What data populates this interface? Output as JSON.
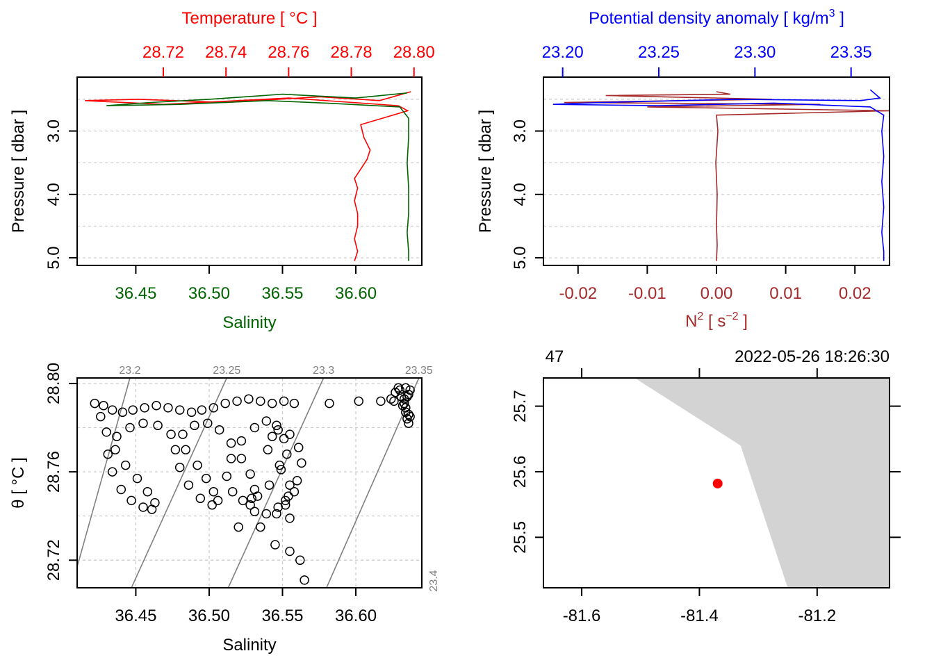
{
  "colors": {
    "temperature": "#ff0000",
    "salinity": "#006400",
    "density": "#0000ff",
    "n2": "#a52a2a",
    "grid": "#c8c8c8",
    "isopycnal": "#808080",
    "land": "#d3d3d3",
    "station": "#ff0000",
    "axis": "#000000"
  },
  "chart_data": [
    {
      "type": "line",
      "panel": "profile-salinity-temperature",
      "top_axis": {
        "label": "Temperature [ °C ]",
        "ticks": [
          "28.72",
          "28.74",
          "28.76",
          "28.78",
          "28.80"
        ],
        "tick_values": [
          28.72,
          28.74,
          28.76,
          28.78,
          28.8
        ],
        "xlim": [
          28.6925,
          28.8025
        ]
      },
      "bottom_axis": {
        "label": "Salinity",
        "ticks": [
          "36.45",
          "36.50",
          "36.55",
          "36.60"
        ],
        "tick_values": [
          36.45,
          36.5,
          36.55,
          36.6
        ],
        "xlim": [
          36.41,
          36.645
        ]
      },
      "y_axis": {
        "label": "Pressure [ dbar ]",
        "ticks": [
          "3.0",
          "4.0",
          "5.0"
        ],
        "tick_values": [
          3.0,
          4.0,
          5.0
        ],
        "ylim": [
          5.12,
          2.15
        ],
        "reversed": true,
        "grid_values": [
          2.5,
          3.0,
          3.5,
          4.0,
          4.5,
          5.0
        ]
      },
      "grid": true,
      "series": [
        {
          "name": "Temperature",
          "axis": "top",
          "x": [
            28.799,
            28.789,
            28.77,
            28.74,
            28.712,
            28.695,
            28.72,
            28.76,
            28.795,
            28.798,
            28.783,
            28.784,
            28.786,
            28.785,
            28.783,
            28.781,
            28.782,
            28.781,
            28.782,
            28.782,
            28.781,
            28.782,
            28.781
          ],
          "y": [
            2.38,
            2.52,
            2.46,
            2.55,
            2.5,
            2.52,
            2.58,
            2.48,
            2.6,
            2.68,
            2.9,
            3.1,
            3.3,
            3.45,
            3.6,
            3.75,
            3.9,
            4.1,
            4.3,
            4.5,
            4.7,
            4.9,
            5.05
          ]
        },
        {
          "name": "Salinity",
          "axis": "bottom",
          "x": [
            36.635,
            36.6,
            36.55,
            36.5,
            36.46,
            36.43,
            36.48,
            36.54,
            36.58,
            36.63,
            36.636,
            36.636,
            36.635,
            36.636,
            36.636,
            36.635,
            36.636,
            36.636
          ],
          "y": [
            2.4,
            2.48,
            2.42,
            2.5,
            2.55,
            2.6,
            2.58,
            2.52,
            2.56,
            2.62,
            2.8,
            3.1,
            3.5,
            3.9,
            4.3,
            4.6,
            4.9,
            5.05
          ]
        }
      ]
    },
    {
      "type": "line",
      "panel": "profile-density-n2",
      "top_axis": {
        "label": "Potential density anomaly [ kg/m",
        "label_sup": "3",
        "label_end": " ]",
        "ticks": [
          "23.20",
          "23.25",
          "23.30",
          "23.35"
        ],
        "tick_values": [
          23.2,
          23.25,
          23.3,
          23.35
        ],
        "xlim": [
          23.19,
          23.37
        ]
      },
      "bottom_axis": {
        "label": "N",
        "label_sup": "2",
        "label_mid": " [ s",
        "label_sup2": "−2",
        "label_end": " ]",
        "ticks": [
          "-0.02",
          "-0.01",
          "0.00",
          "0.01",
          "0.02"
        ],
        "tick_values": [
          -0.02,
          -0.01,
          0.0,
          0.01,
          0.02
        ],
        "xlim": [
          -0.025,
          0.025
        ]
      },
      "y_axis": {
        "label": "Pressure [ dbar ]",
        "ticks": [
          "3.0",
          "4.0",
          "5.0"
        ],
        "tick_values": [
          3.0,
          4.0,
          5.0
        ],
        "ylim": [
          5.12,
          2.15
        ],
        "reversed": true,
        "grid_values": [
          2.5,
          3.0,
          3.5,
          4.0,
          4.5,
          5.0
        ]
      },
      "grid": true,
      "series": [
        {
          "name": "Potential density anomaly",
          "axis": "top",
          "x": [
            23.36,
            23.365,
            23.355,
            23.29,
            23.22,
            23.195,
            23.25,
            23.31,
            23.36,
            23.367,
            23.366,
            23.367,
            23.366,
            23.367,
            23.366,
            23.367,
            23.367
          ],
          "y": [
            2.35,
            2.48,
            2.52,
            2.5,
            2.55,
            2.58,
            2.6,
            2.56,
            2.62,
            2.75,
            3.0,
            3.4,
            3.8,
            4.2,
            4.6,
            4.9,
            5.05
          ]
        },
        {
          "name": "N2",
          "axis": "bottom",
          "x": [
            0.0,
            0.002,
            -0.016,
            0.008,
            -0.022,
            0.015,
            -0.01,
            0.025,
            0.0,
            0.0002,
            -0.0001,
            0.0001,
            0.0,
            0.0001,
            0.0
          ],
          "y": [
            2.38,
            2.42,
            2.44,
            2.5,
            2.55,
            2.58,
            2.62,
            2.68,
            2.75,
            3.0,
            3.5,
            4.0,
            4.5,
            4.8,
            5.05
          ]
        }
      ]
    },
    {
      "type": "scatter",
      "panel": "ts-diagram",
      "x_axis": {
        "label": "Salinity",
        "ticks": [
          "36.45",
          "36.50",
          "36.55",
          "36.60"
        ],
        "tick_values": [
          36.45,
          36.5,
          36.55,
          36.6
        ],
        "xlim": [
          36.41,
          36.645
        ]
      },
      "y_axis": {
        "label": "θ [ °C ]",
        "ticks": [
          "28.72",
          "28.76",
          "28.80"
        ],
        "tick_values": [
          28.72,
          28.76,
          28.8
        ],
        "ylim": [
          28.7075,
          28.8025
        ],
        "grid_values": [
          28.72,
          28.74,
          28.76,
          28.78,
          28.8
        ]
      },
      "grid": true,
      "isopycnals": [
        {
          "label": "23.2",
          "S_at_bottom": 36.406,
          "S_at_top": 36.446
        },
        {
          "label": "23.25",
          "S_at_bottom": 36.447,
          "S_at_top": 36.512
        },
        {
          "label": "23.3",
          "S_at_bottom": 36.513,
          "S_at_top": 36.578
        },
        {
          "label": "23.35",
          "S_at_bottom": 36.58,
          "S_at_top": 36.643
        },
        {
          "label": "23.4",
          "S_at_bottom": 36.647,
          "S_at_top": 36.71
        }
      ],
      "x": [
        36.422,
        36.428,
        36.434,
        36.441,
        36.448,
        36.456,
        36.464,
        36.472,
        36.48,
        36.488,
        36.495,
        36.503,
        36.511,
        36.519,
        36.527,
        36.535,
        36.543,
        36.551,
        36.558,
        36.426,
        36.43,
        36.436,
        36.443,
        36.451,
        36.458,
        36.463,
        36.461,
        36.455,
        36.447,
        36.44,
        36.434,
        36.431,
        36.437,
        36.446,
        36.455,
        36.465,
        36.474,
        36.484,
        36.492,
        36.498,
        36.503,
        36.506,
        36.502,
        36.494,
        36.486,
        36.48,
        36.477,
        36.482,
        36.49,
        36.499,
        36.507,
        36.515,
        36.522,
        36.528,
        36.531,
        36.529,
        36.523,
        36.516,
        36.512,
        36.515,
        36.522,
        36.531,
        36.539,
        36.546,
        36.551,
        36.553,
        36.549,
        36.541,
        36.533,
        36.528,
        36.531,
        36.539,
        36.547,
        36.554,
        36.56,
        36.563,
        36.561,
        36.555,
        36.547,
        36.543,
        36.54,
        36.548,
        36.555,
        36.552,
        36.546,
        36.552,
        36.558,
        36.555,
        36.535,
        36.52,
        36.545,
        36.555,
        36.562,
        36.565,
        36.582,
        36.602,
        36.617,
        36.624,
        36.627,
        36.629,
        36.631,
        36.633,
        36.634,
        36.635,
        36.636,
        36.637,
        36.634,
        36.633,
        36.636,
        36.63,
        36.626,
        36.636,
        36.634,
        36.632,
        36.637,
        36.635,
        36.633
      ],
      "y": [
        28.791,
        28.79,
        28.788,
        28.787,
        28.788,
        28.789,
        28.79,
        28.789,
        28.788,
        28.787,
        28.788,
        28.789,
        28.791,
        28.792,
        28.793,
        28.792,
        28.791,
        28.792,
        28.791,
        28.785,
        28.778,
        28.77,
        28.763,
        28.757,
        28.751,
        28.746,
        28.743,
        28.744,
        28.747,
        28.752,
        28.76,
        28.768,
        28.776,
        28.78,
        28.782,
        28.781,
        28.777,
        28.77,
        28.763,
        28.757,
        28.751,
        28.747,
        28.745,
        28.748,
        28.754,
        28.762,
        28.77,
        28.777,
        28.781,
        28.782,
        28.779,
        28.773,
        28.766,
        28.759,
        28.752,
        28.748,
        28.747,
        28.751,
        28.758,
        28.766,
        28.774,
        28.78,
        28.783,
        28.781,
        28.775,
        28.768,
        28.761,
        28.754,
        28.749,
        28.745,
        28.742,
        28.741,
        28.744,
        28.749,
        28.756,
        28.764,
        28.771,
        28.777,
        28.779,
        28.776,
        28.77,
        28.763,
        28.754,
        28.747,
        28.741,
        28.745,
        28.751,
        28.739,
        28.735,
        28.735,
        28.727,
        28.724,
        28.72,
        28.711,
        28.791,
        28.792,
        28.792,
        28.793,
        28.796,
        28.798,
        28.794,
        28.791,
        28.787,
        28.784,
        28.782,
        28.797,
        28.789,
        28.793,
        28.795,
        28.797,
        28.792,
        28.786,
        28.798,
        28.79,
        28.785,
        28.794,
        28.791
      ]
    },
    {
      "type": "scatter",
      "panel": "location-map",
      "top_left_label": "47",
      "top_right_label": "2022-05-26 18:26:30",
      "x_axis": {
        "ticks": [
          "-81.6",
          "-81.4",
          "-81.2"
        ],
        "tick_values": [
          -81.6,
          -81.4,
          -81.2
        ],
        "xlim": [
          -81.665,
          -81.077
        ]
      },
      "y_axis": {
        "ticks": [
          "25.5",
          "25.6",
          "25.7"
        ],
        "tick_values": [
          25.5,
          25.6,
          25.7
        ],
        "ylim": [
          25.423,
          25.743
        ]
      },
      "land": {
        "lon": [
          -81.51,
          -81.33,
          -81.25,
          -81.077,
          -81.077
        ],
        "lat": [
          25.743,
          25.64,
          25.423,
          25.423,
          25.743
        ]
      },
      "station": {
        "lon": -81.369,
        "lat": 25.582
      }
    }
  ]
}
